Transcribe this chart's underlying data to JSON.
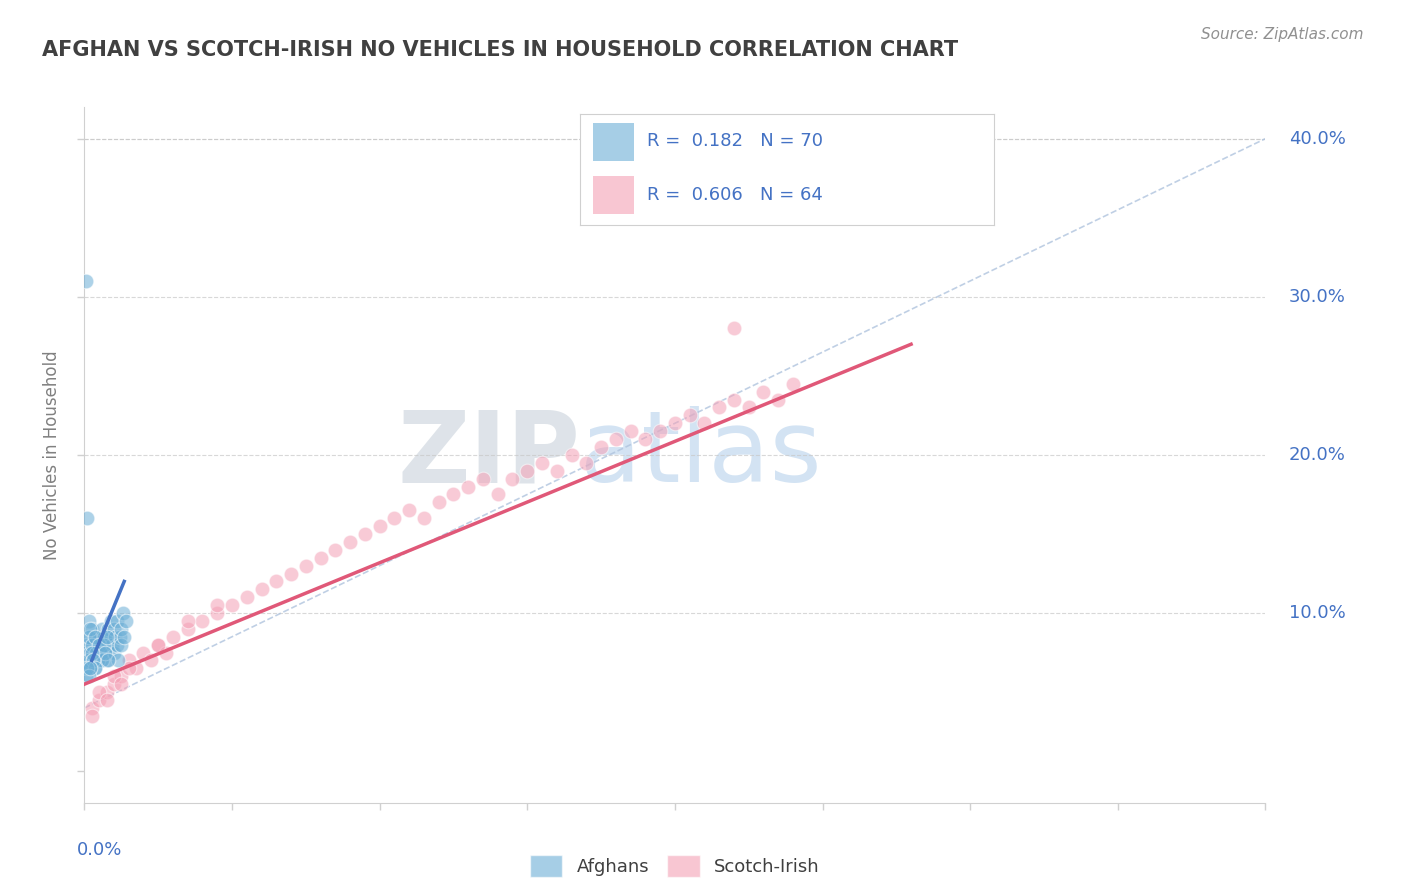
{
  "title": "AFGHAN VS SCOTCH-IRISH NO VEHICLES IN HOUSEHOLD CORRELATION CHART",
  "source": "Source: ZipAtlas.com",
  "ylabel": "No Vehicles in Household",
  "xlim": [
    0.0,
    0.8
  ],
  "ylim": [
    -0.02,
    0.42
  ],
  "afghan_color": "#6baed6",
  "scotch_color": "#f4a0b5",
  "afghan_line_color": "#4472c4",
  "scotch_line_color": "#e05878",
  "ref_line_color": "#b0c4de",
  "watermark_zip": "ZIP",
  "watermark_atlas": "atlas",
  "background_color": "#ffffff",
  "afghan_N": 70,
  "scotch_N": 64,
  "afghan_x": [
    0.003,
    0.003,
    0.004,
    0.005,
    0.005,
    0.006,
    0.006,
    0.007,
    0.008,
    0.008,
    0.009,
    0.009,
    0.01,
    0.01,
    0.011,
    0.011,
    0.012,
    0.013,
    0.013,
    0.014,
    0.015,
    0.015,
    0.016,
    0.016,
    0.017,
    0.018,
    0.018,
    0.019,
    0.02,
    0.02,
    0.021,
    0.022,
    0.022,
    0.023,
    0.024,
    0.025,
    0.025,
    0.026,
    0.027,
    0.028,
    0.001,
    0.002,
    0.002,
    0.003,
    0.004,
    0.004,
    0.005,
    0.006,
    0.007,
    0.008,
    0.009,
    0.01,
    0.011,
    0.012,
    0.013,
    0.014,
    0.015,
    0.016,
    0.002,
    0.003,
    0.004,
    0.005,
    0.006,
    0.007,
    0.001,
    0.002,
    0.003,
    0.004,
    0.002,
    0.001
  ],
  "afghan_y": [
    0.085,
    0.095,
    0.08,
    0.075,
    0.09,
    0.07,
    0.08,
    0.065,
    0.075,
    0.085,
    0.07,
    0.08,
    0.075,
    0.085,
    0.07,
    0.08,
    0.09,
    0.075,
    0.085,
    0.08,
    0.07,
    0.085,
    0.08,
    0.09,
    0.075,
    0.085,
    0.095,
    0.08,
    0.075,
    0.09,
    0.085,
    0.08,
    0.095,
    0.07,
    0.085,
    0.08,
    0.09,
    0.1,
    0.085,
    0.095,
    0.075,
    0.08,
    0.07,
    0.085,
    0.075,
    0.09,
    0.08,
    0.07,
    0.085,
    0.075,
    0.07,
    0.08,
    0.075,
    0.07,
    0.08,
    0.075,
    0.085,
    0.07,
    0.065,
    0.07,
    0.065,
    0.075,
    0.07,
    0.065,
    0.06,
    0.065,
    0.06,
    0.065,
    0.16,
    0.31
  ],
  "scotch_x": [
    0.005,
    0.01,
    0.015,
    0.02,
    0.025,
    0.03,
    0.035,
    0.04,
    0.045,
    0.05,
    0.055,
    0.06,
    0.07,
    0.08,
    0.09,
    0.1,
    0.11,
    0.12,
    0.13,
    0.14,
    0.15,
    0.16,
    0.17,
    0.18,
    0.19,
    0.2,
    0.21,
    0.22,
    0.23,
    0.24,
    0.25,
    0.26,
    0.27,
    0.28,
    0.29,
    0.3,
    0.31,
    0.32,
    0.33,
    0.34,
    0.35,
    0.36,
    0.37,
    0.38,
    0.39,
    0.4,
    0.41,
    0.42,
    0.43,
    0.44,
    0.45,
    0.46,
    0.47,
    0.48,
    0.005,
    0.01,
    0.015,
    0.02,
    0.025,
    0.03,
    0.05,
    0.07,
    0.09,
    0.44
  ],
  "scotch_y": [
    0.04,
    0.045,
    0.05,
    0.055,
    0.06,
    0.07,
    0.065,
    0.075,
    0.07,
    0.08,
    0.075,
    0.085,
    0.09,
    0.095,
    0.1,
    0.105,
    0.11,
    0.115,
    0.12,
    0.125,
    0.13,
    0.135,
    0.14,
    0.145,
    0.15,
    0.155,
    0.16,
    0.165,
    0.16,
    0.17,
    0.175,
    0.18,
    0.185,
    0.175,
    0.185,
    0.19,
    0.195,
    0.19,
    0.2,
    0.195,
    0.205,
    0.21,
    0.215,
    0.21,
    0.215,
    0.22,
    0.225,
    0.22,
    0.23,
    0.235,
    0.23,
    0.24,
    0.235,
    0.245,
    0.035,
    0.05,
    0.045,
    0.06,
    0.055,
    0.065,
    0.08,
    0.095,
    0.105,
    0.28
  ],
  "afghan_trend_x": [
    0.0,
    0.8
  ],
  "afghan_trend_y": [
    0.04,
    0.4
  ],
  "scotch_trend_x": [
    0.0,
    0.56
  ],
  "scotch_trend_y": [
    0.055,
    0.27
  ]
}
